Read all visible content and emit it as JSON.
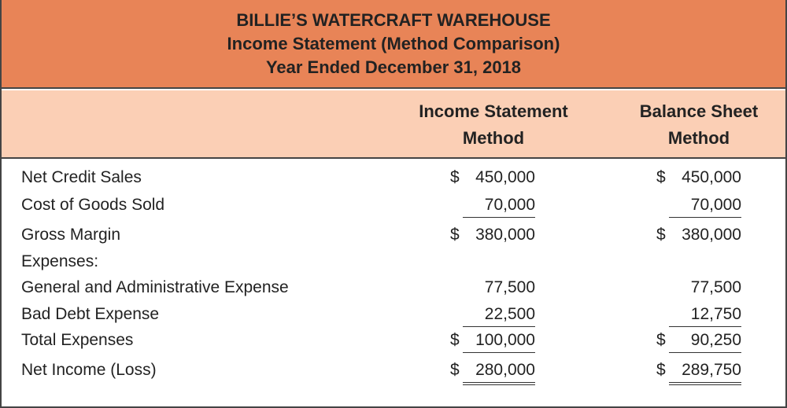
{
  "header": {
    "company": "BILLIE’S WATERCRAFT WAREHOUSE",
    "statement": "Income Statement (Method Comparison)",
    "period": "Year Ended December 31, 2018"
  },
  "columns": [
    {
      "line1": "Income Statement",
      "line2": "Method"
    },
    {
      "line1": "Balance Sheet",
      "line2": "Method"
    }
  ],
  "rows": [
    {
      "label": "Net Credit Sales",
      "col1": {
        "dollar": "$",
        "amount": "450,000"
      },
      "col2": {
        "dollar": "$",
        "amount": "450,000"
      }
    },
    {
      "label": "Cost of Goods Sold",
      "col1": {
        "dollar": "",
        "amount": "70,000"
      },
      "col2": {
        "dollar": "",
        "amount": "70,000"
      }
    },
    {
      "label": "Gross Margin",
      "col1": {
        "dollar": "$",
        "amount": "380,000"
      },
      "col2": {
        "dollar": "$",
        "amount": "380,000"
      }
    },
    {
      "label": "Expenses:",
      "col1": {
        "dollar": "",
        "amount": ""
      },
      "col2": {
        "dollar": "",
        "amount": ""
      }
    },
    {
      "label": "General and Administrative Expense",
      "col1": {
        "dollar": "",
        "amount": "77,500"
      },
      "col2": {
        "dollar": "",
        "amount": "77,500"
      }
    },
    {
      "label": "Bad Debt Expense",
      "col1": {
        "dollar": "",
        "amount": "22,500"
      },
      "col2": {
        "dollar": "",
        "amount": "12,750"
      }
    },
    {
      "label": "Total Expenses",
      "col1": {
        "dollar": "$",
        "amount": "100,000"
      },
      "col2": {
        "dollar": "$",
        "amount": "90,250"
      }
    },
    {
      "label": "Net Income (Loss)",
      "col1": {
        "dollar": "$",
        "amount": "280,000"
      },
      "col2": {
        "dollar": "$",
        "amount": "289,750"
      }
    }
  ],
  "colors": {
    "title_bg": "#e88457",
    "column_header_bg": "#fbcfb5",
    "border": "#444444"
  }
}
